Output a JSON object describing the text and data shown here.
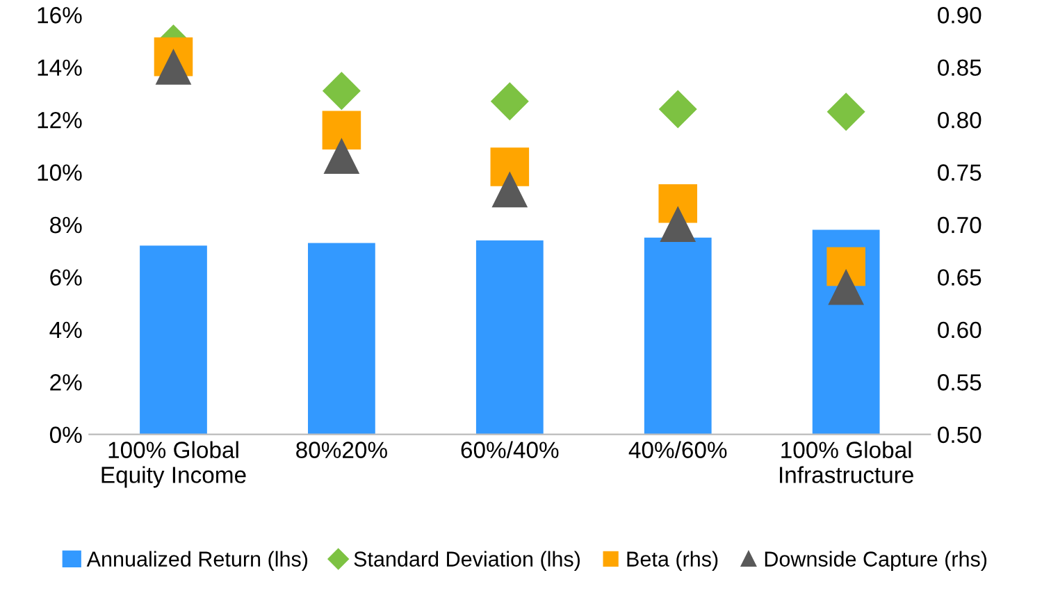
{
  "chart_data": {
    "type": "bar",
    "categories": [
      "100% Global\nEquity Income",
      "80%20%",
      "60%/40%",
      "40%/60%",
      "100% Global\nInfrastructure"
    ],
    "series": [
      {
        "name": "Annualized Return (lhs)",
        "color": "#3399ff",
        "values": [
          7.2,
          7.3,
          7.4,
          7.5,
          7.8
        ]
      },
      {
        "name": "Standard Deviation (lhs)",
        "type": "scatter",
        "marker": "diamond",
        "color": "#7dc242",
        "values": [
          14.9,
          13.1,
          12.7,
          12.4,
          12.3
        ]
      },
      {
        "name": "Beta (rhs)",
        "type": "scatter",
        "marker": "square",
        "axis": "y2",
        "color": "#ffa500",
        "values": [
          0.86,
          0.79,
          0.755,
          0.72,
          0.66
        ]
      },
      {
        "name": "Downside Capture (rhs)",
        "type": "scatter",
        "marker": "triangle",
        "axis": "y2",
        "color": "#595959",
        "values": [
          0.85,
          0.765,
          0.733,
          0.7,
          0.64
        ]
      }
    ],
    "ylim": [
      0,
      16
    ],
    "yticks": [
      {
        "value": 0,
        "label": "0%"
      },
      {
        "value": 2,
        "label": "2%"
      },
      {
        "value": 4,
        "label": "4%"
      },
      {
        "value": 6,
        "label": "6%"
      },
      {
        "value": 8,
        "label": "8%"
      },
      {
        "value": 10,
        "label": "10%"
      },
      {
        "value": 12,
        "label": "12%"
      },
      {
        "value": 14,
        "label": "14%"
      },
      {
        "value": 16,
        "label": "16%"
      }
    ],
    "y2lim": [
      0.5,
      0.9
    ],
    "y2ticks": [
      {
        "value": 0.5,
        "label": "0.50"
      },
      {
        "value": 0.55,
        "label": "0.55"
      },
      {
        "value": 0.6,
        "label": "0.60"
      },
      {
        "value": 0.65,
        "label": "0.65"
      },
      {
        "value": 0.7,
        "label": "0.70"
      },
      {
        "value": 0.75,
        "label": "0.75"
      },
      {
        "value": 0.8,
        "label": "0.80"
      },
      {
        "value": 0.85,
        "label": "0.85"
      },
      {
        "value": 0.9,
        "label": "0.90"
      }
    ],
    "grid": false,
    "legend": "bottom"
  }
}
